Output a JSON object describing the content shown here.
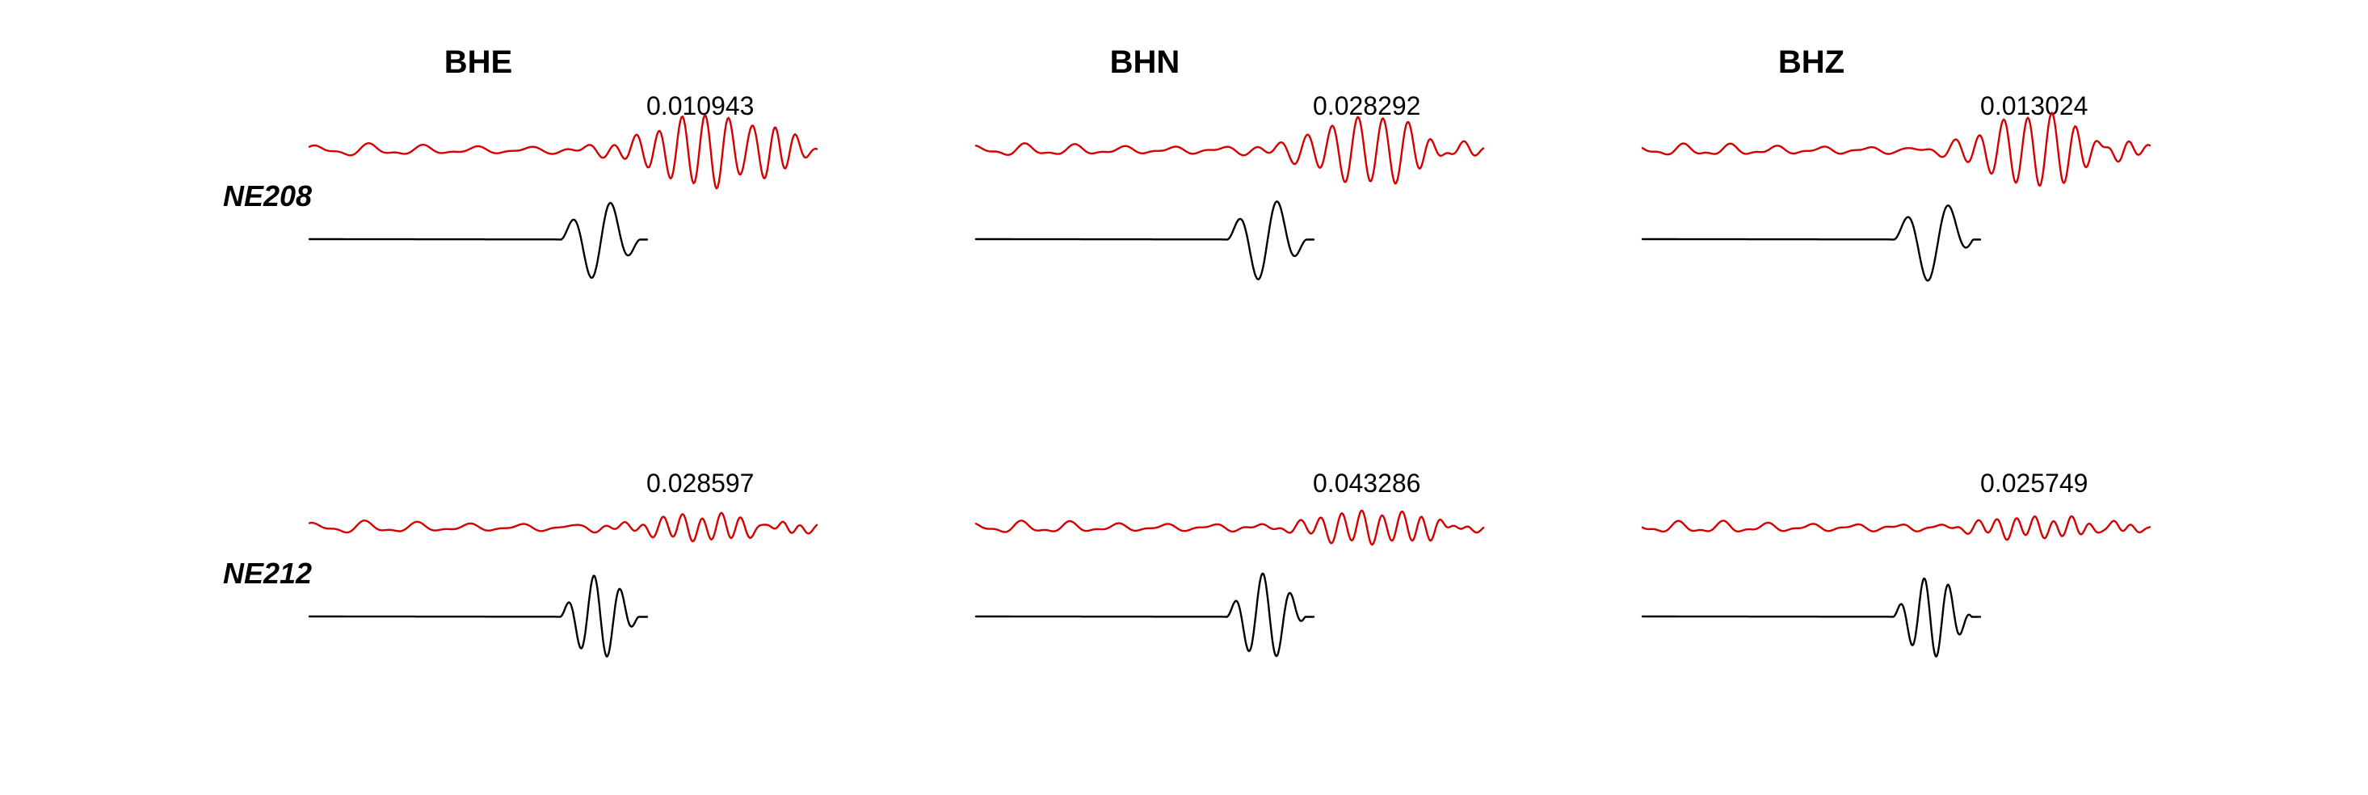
{
  "chart_data": {
    "type": "line",
    "channels": [
      "BHE",
      "BHN",
      "BHZ"
    ],
    "stations": [
      "NE208",
      "NE212"
    ],
    "colors": {
      "observed": "#d40000",
      "synthetic": "#000000"
    },
    "panels": [
      {
        "station": "NE208",
        "traces": [
          {
            "channel": "BHE",
            "amplitude": "0.010943",
            "observed_style": "low-amplitude noise with two large cycles near the end",
            "synthetic_style": "flat then two-cycle pulse"
          },
          {
            "channel": "BHN",
            "amplitude": "0.028292",
            "observed_style": "low-amplitude noise with oscillations near the end",
            "synthetic_style": "flat then two-cycle pulse"
          },
          {
            "channel": "BHZ",
            "amplitude": "0.013024",
            "observed_style": "low-amplitude noise with large oscillations near the end",
            "synthetic_style": "flat then two-cycle pulse"
          }
        ]
      },
      {
        "station": "NE212",
        "traces": [
          {
            "channel": "BHE",
            "amplitude": "0.028597",
            "observed_style": "low-amplitude noise with small oscillations near the end",
            "synthetic_style": "flat then multi-cycle pulse"
          },
          {
            "channel": "BHN",
            "amplitude": "0.043286",
            "observed_style": "low-amplitude noise with small oscillations near the end",
            "synthetic_style": "flat then multi-cycle pulse"
          },
          {
            "channel": "BHZ",
            "amplitude": "0.025749",
            "observed_style": "low-amplitude noise with small oscillations near the end",
            "synthetic_style": "flat then multi-cycle pulse"
          }
        ]
      }
    ],
    "axes_visible": false,
    "grid": false
  }
}
